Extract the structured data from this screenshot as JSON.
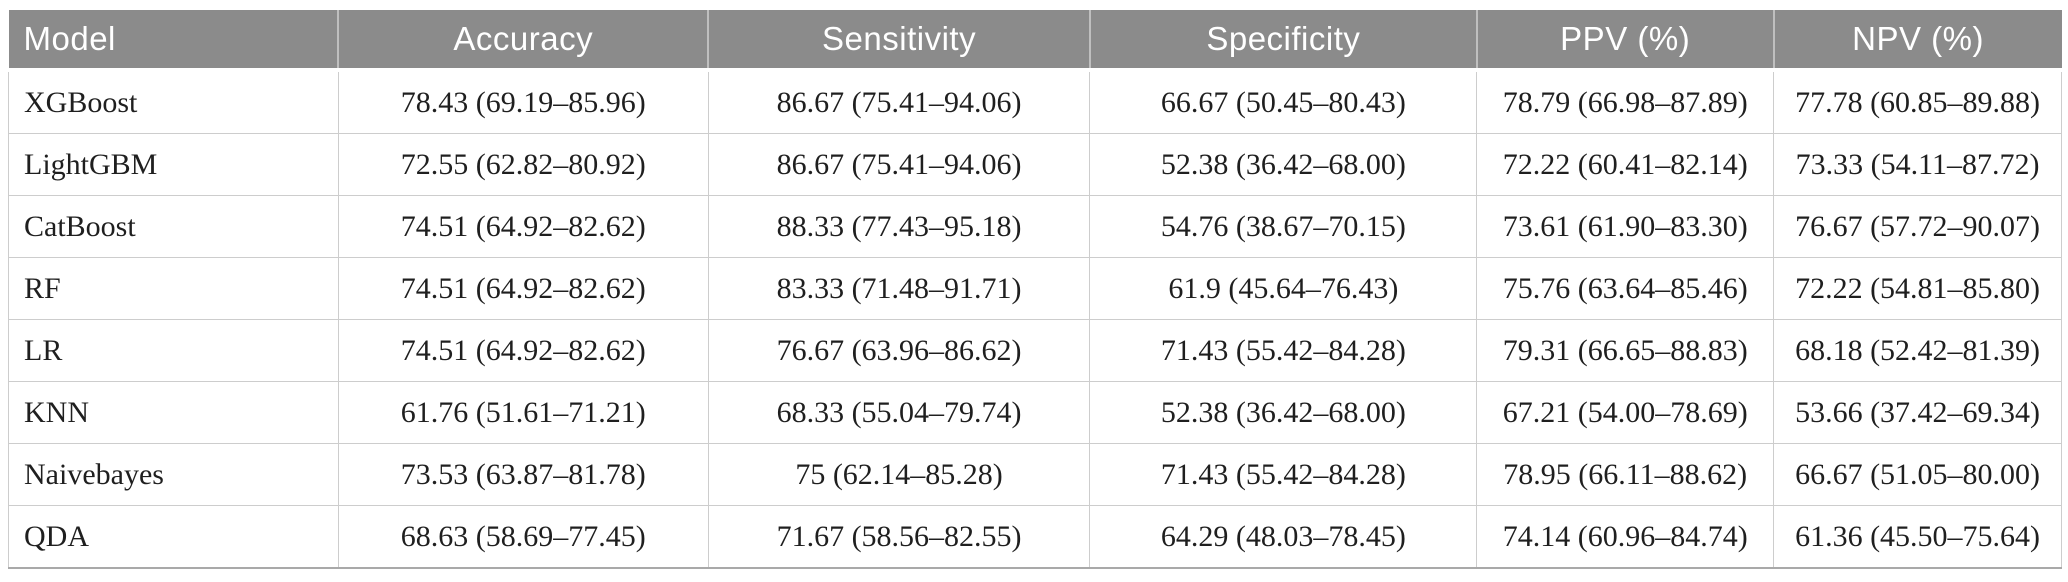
{
  "table": {
    "columns": [
      "Model",
      "Accuracy",
      "Sensitivity",
      "Specificity",
      "PPV (%)",
      "NPV (%)"
    ],
    "rows": [
      [
        "XGBoost",
        "78.43 (69.19–85.96)",
        "86.67 (75.41–94.06)",
        "66.67 (50.45–80.43)",
        "78.79 (66.98–87.89)",
        "77.78 (60.85–89.88)"
      ],
      [
        "LightGBM",
        "72.55 (62.82–80.92)",
        "86.67 (75.41–94.06)",
        "52.38 (36.42–68.00)",
        "72.22 (60.41–82.14)",
        "73.33 (54.11–87.72)"
      ],
      [
        "CatBoost",
        "74.51 (64.92–82.62)",
        "88.33 (77.43–95.18)",
        "54.76 (38.67–70.15)",
        "73.61 (61.90–83.30)",
        "76.67 (57.72–90.07)"
      ],
      [
        "RF",
        "74.51 (64.92–82.62)",
        "83.33 (71.48–91.71)",
        "61.9 (45.64–76.43)",
        "75.76 (63.64–85.46)",
        "72.22 (54.81–85.80)"
      ],
      [
        "LR",
        "74.51 (64.92–82.62)",
        "76.67 (63.96–86.62)",
        "71.43 (55.42–84.28)",
        "79.31 (66.65–88.83)",
        "68.18 (52.42–81.39)"
      ],
      [
        "KNN",
        "61.76 (51.61–71.21)",
        "68.33 (55.04–79.74)",
        "52.38 (36.42–68.00)",
        "67.21 (54.00–78.69)",
        "53.66 (37.42–69.34)"
      ],
      [
        "Naivebayes",
        "73.53 (63.87–81.78)",
        "75 (62.14–85.28)",
        "71.43 (55.42–84.28)",
        "78.95 (66.11–88.62)",
        "66.67 (51.05–80.00)"
      ],
      [
        "QDA",
        "68.63 (58.69–77.45)",
        "71.67 (58.56–82.55)",
        "64.29 (48.03–78.45)",
        "74.14 (60.96–84.74)",
        "61.36 (45.50–75.64)"
      ]
    ]
  },
  "colors": {
    "header_bg": "#8b8b8b",
    "header_text": "#ffffff",
    "grid_line": "#cdcdcd",
    "bottom_border": "#a9a9a9",
    "body_text": "#1f1f1f"
  }
}
